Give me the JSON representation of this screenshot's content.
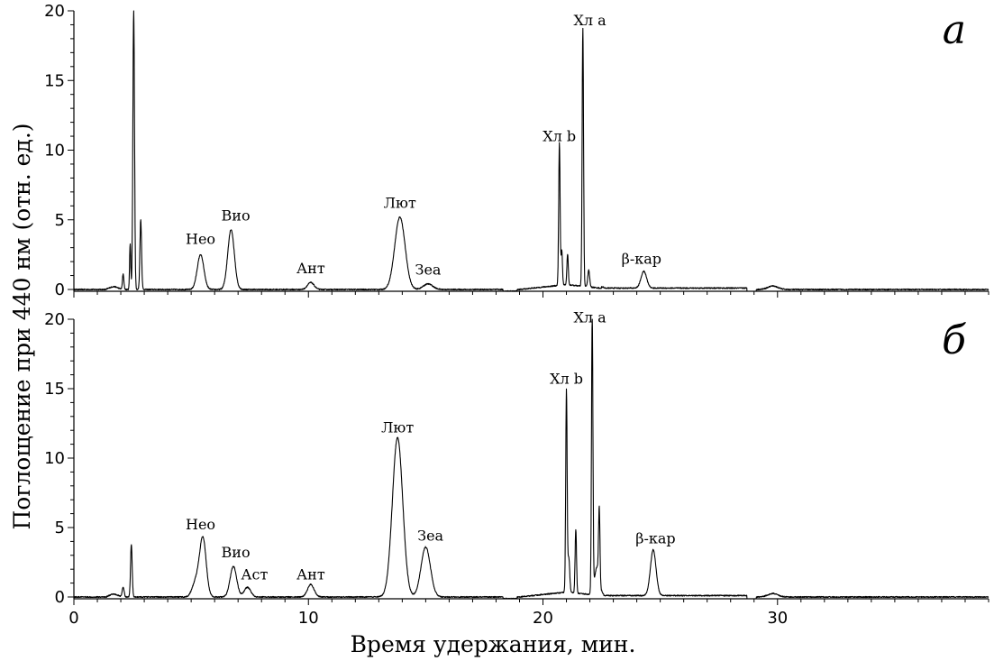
{
  "figure": {
    "ylabel": "Поглощение при 440 нм (отн. ед.)",
    "xlabel": "Время удержания, мин."
  },
  "chart_data": [
    {
      "type": "line",
      "panel": "а",
      "xlim": [
        0,
        39
      ],
      "ylim": [
        0,
        20
      ],
      "xticks": [
        0,
        10,
        20,
        30
      ],
      "yticks": [
        0,
        5,
        10,
        15,
        20
      ],
      "peaks": [
        {
          "name": "",
          "x": 2.55,
          "y": 20
        },
        {
          "name": "",
          "x": 2.85,
          "y": 5
        },
        {
          "name": "Нео",
          "x": 5.4,
          "y": 2.5
        },
        {
          "name": "Вио",
          "x": 6.7,
          "y": 4.3
        },
        {
          "name": "Ант",
          "x": 10.1,
          "y": 0.5
        },
        {
          "name": "Лют",
          "x": 13.9,
          "y": 5.2
        },
        {
          "name": "Зеа",
          "x": 15.1,
          "y": 0.4
        },
        {
          "name": "Хл b",
          "x": 20.7,
          "y": 10.2
        },
        {
          "name": "Хл a",
          "x": 21.7,
          "y": 18.5
        },
        {
          "name": "β-кар",
          "x": 24.3,
          "y": 1.2
        }
      ],
      "labels": [
        {
          "text": "Нео",
          "x": 5.4,
          "y": 3.0
        },
        {
          "text": "Вио",
          "x": 6.9,
          "y": 4.7
        },
        {
          "text": "Ант",
          "x": 10.1,
          "y": 0.9
        },
        {
          "text": "Лют",
          "x": 13.9,
          "y": 5.6
        },
        {
          "text": "Зеа",
          "x": 15.1,
          "y": 0.8
        },
        {
          "text": "Хл b",
          "x": 20.7,
          "y": 10.4
        },
        {
          "text": "Хл a",
          "x": 22.0,
          "y": 18.7
        },
        {
          "text": "β-кар",
          "x": 24.2,
          "y": 1.6
        }
      ]
    },
    {
      "type": "line",
      "panel": "б",
      "xlim": [
        0,
        39
      ],
      "ylim": [
        0,
        20
      ],
      "xticks": [
        0,
        10,
        20,
        30
      ],
      "yticks": [
        0,
        5,
        10,
        15,
        20
      ],
      "peaks": [
        {
          "name": "",
          "x": 2.45,
          "y": 3.8
        },
        {
          "name": "Нео",
          "x": 5.5,
          "y": 4.2
        },
        {
          "name": "Вио",
          "x": 6.8,
          "y": 2.2
        },
        {
          "name": "Аст",
          "x": 7.4,
          "y": 0.7
        },
        {
          "name": "Ант",
          "x": 10.1,
          "y": 0.9
        },
        {
          "name": "Лют",
          "x": 13.8,
          "y": 11.5
        },
        {
          "name": "Зеа",
          "x": 15.0,
          "y": 3.6
        },
        {
          "name": "Хл b",
          "x": 21.0,
          "y": 14.5
        },
        {
          "name": "Хл a",
          "x": 22.1,
          "y": 20
        },
        {
          "name": "β-кар",
          "x": 24.7,
          "y": 3.3
        }
      ],
      "labels": [
        {
          "text": "Нео",
          "x": 5.4,
          "y": 4.6
        },
        {
          "text": "Вио",
          "x": 6.9,
          "y": 2.6
        },
        {
          "text": "Аст",
          "x": 7.7,
          "y": 1.0
        },
        {
          "text": "Ант",
          "x": 10.1,
          "y": 1.0
        },
        {
          "text": "Лют",
          "x": 13.8,
          "y": 11.6
        },
        {
          "text": "Зеа",
          "x": 15.2,
          "y": 3.8
        },
        {
          "text": "Хл b",
          "x": 21.0,
          "y": 15.1
        },
        {
          "text": "Хл a",
          "x": 22.0,
          "y": 19.5
        },
        {
          "text": "β-кар",
          "x": 24.8,
          "y": 3.6
        }
      ]
    }
  ]
}
